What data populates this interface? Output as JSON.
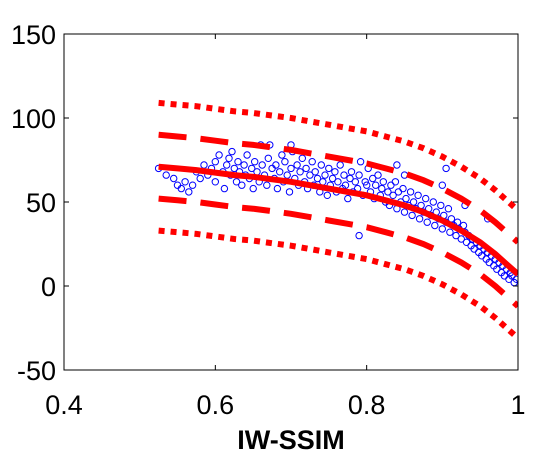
{
  "chart_data": {
    "type": "scatter",
    "title": "",
    "xlabel": "IW-SSIM",
    "ylabel": "",
    "xlim": [
      0.4,
      1.0
    ],
    "ylim": [
      -50,
      150
    ],
    "x_ticks": [
      0.4,
      0.6,
      0.8,
      1.0
    ],
    "x_tick_labels": [
      "0.4",
      "0.6",
      "0.8",
      "1"
    ],
    "y_ticks": [
      -50,
      0,
      50,
      100,
      150
    ],
    "y_tick_labels": [
      "-50",
      "0",
      "50",
      "100",
      "150"
    ],
    "grid": false,
    "legend": "none",
    "colors": {
      "points": "#0000ff",
      "fit": "#ff0000"
    },
    "series": [
      {
        "kind": "scatter",
        "marker": "open-circle",
        "points": [
          [
            0.525,
            70
          ],
          [
            0.535,
            66
          ],
          [
            0.545,
            64
          ],
          [
            0.55,
            60
          ],
          [
            0.555,
            58
          ],
          [
            0.56,
            62
          ],
          [
            0.565,
            56
          ],
          [
            0.57,
            60
          ],
          [
            0.575,
            68
          ],
          [
            0.58,
            64
          ],
          [
            0.585,
            72
          ],
          [
            0.59,
            66
          ],
          [
            0.595,
            70
          ],
          [
            0.6,
            74
          ],
          [
            0.6,
            62
          ],
          [
            0.605,
            78
          ],
          [
            0.61,
            68
          ],
          [
            0.612,
            58
          ],
          [
            0.615,
            72
          ],
          [
            0.618,
            76
          ],
          [
            0.62,
            66
          ],
          [
            0.622,
            80
          ],
          [
            0.625,
            70
          ],
          [
            0.628,
            62
          ],
          [
            0.63,
            74
          ],
          [
            0.632,
            68
          ],
          [
            0.635,
            60
          ],
          [
            0.638,
            72
          ],
          [
            0.64,
            66
          ],
          [
            0.642,
            78
          ],
          [
            0.645,
            64
          ],
          [
            0.648,
            70
          ],
          [
            0.65,
            58
          ],
          [
            0.652,
            74
          ],
          [
            0.655,
            68
          ],
          [
            0.658,
            62
          ],
          [
            0.66,
            84
          ],
          [
            0.662,
            72
          ],
          [
            0.665,
            66
          ],
          [
            0.668,
            60
          ],
          [
            0.67,
            76
          ],
          [
            0.672,
            84
          ],
          [
            0.675,
            70
          ],
          [
            0.678,
            64
          ],
          [
            0.68,
            72
          ],
          [
            0.682,
            58
          ],
          [
            0.685,
            68
          ],
          [
            0.688,
            78
          ],
          [
            0.69,
            62
          ],
          [
            0.692,
            74
          ],
          [
            0.695,
            66
          ],
          [
            0.698,
            56
          ],
          [
            0.7,
            70
          ],
          [
            0.702,
            80
          ],
          [
            0.705,
            64
          ],
          [
            0.708,
            72
          ],
          [
            0.71,
            60
          ],
          [
            0.712,
            68
          ],
          [
            0.715,
            76
          ],
          [
            0.718,
            62
          ],
          [
            0.72,
            70
          ],
          [
            0.722,
            58
          ],
          [
            0.725,
            66
          ],
          [
            0.728,
            74
          ],
          [
            0.73,
            60
          ],
          [
            0.732,
            68
          ],
          [
            0.735,
            64
          ],
          [
            0.738,
            56
          ],
          [
            0.74,
            72
          ],
          [
            0.742,
            62
          ],
          [
            0.745,
            66
          ],
          [
            0.748,
            54
          ],
          [
            0.75,
            70
          ],
          [
            0.752,
            60
          ],
          [
            0.755,
            64
          ],
          [
            0.758,
            68
          ],
          [
            0.76,
            56
          ],
          [
            0.762,
            62
          ],
          [
            0.765,
            72
          ],
          [
            0.768,
            58
          ],
          [
            0.77,
            66
          ],
          [
            0.772,
            60
          ],
          [
            0.775,
            52
          ],
          [
            0.778,
            64
          ],
          [
            0.78,
            68
          ],
          [
            0.782,
            56
          ],
          [
            0.785,
            62
          ],
          [
            0.788,
            58
          ],
          [
            0.79,
            66
          ],
          [
            0.79,
            30
          ],
          [
            0.792,
            74
          ],
          [
            0.795,
            54
          ],
          [
            0.798,
            62
          ],
          [
            0.8,
            60
          ],
          [
            0.802,
            70
          ],
          [
            0.805,
            56
          ],
          [
            0.808,
            64
          ],
          [
            0.81,
            52
          ],
          [
            0.812,
            60
          ],
          [
            0.815,
            66
          ],
          [
            0.818,
            54
          ],
          [
            0.82,
            58
          ],
          [
            0.822,
            62
          ],
          [
            0.825,
            50
          ],
          [
            0.828,
            56
          ],
          [
            0.83,
            48
          ],
          [
            0.832,
            60
          ],
          [
            0.835,
            54
          ],
          [
            0.838,
            62
          ],
          [
            0.84,
            46
          ],
          [
            0.842,
            56
          ],
          [
            0.845,
            50
          ],
          [
            0.848,
            58
          ],
          [
            0.85,
            44
          ],
          [
            0.852,
            52
          ],
          [
            0.855,
            48
          ],
          [
            0.858,
            56
          ],
          [
            0.86,
            42
          ],
          [
            0.862,
            50
          ],
          [
            0.865,
            46
          ],
          [
            0.868,
            54
          ],
          [
            0.87,
            40
          ],
          [
            0.872,
            48
          ],
          [
            0.875,
            44
          ],
          [
            0.878,
            52
          ],
          [
            0.88,
            38
          ],
          [
            0.882,
            46
          ],
          [
            0.885,
            42
          ],
          [
            0.888,
            50
          ],
          [
            0.89,
            36
          ],
          [
            0.892,
            44
          ],
          [
            0.895,
            40
          ],
          [
            0.898,
            48
          ],
          [
            0.9,
            34
          ],
          [
            0.902,
            42
          ],
          [
            0.905,
            38
          ],
          [
            0.908,
            46
          ],
          [
            0.91,
            32
          ],
          [
            0.912,
            40
          ],
          [
            0.915,
            36
          ],
          [
            0.918,
            30
          ],
          [
            0.92,
            38
          ],
          [
            0.922,
            34
          ],
          [
            0.925,
            28
          ],
          [
            0.928,
            36
          ],
          [
            0.93,
            32
          ],
          [
            0.932,
            26
          ],
          [
            0.935,
            30
          ],
          [
            0.938,
            24
          ],
          [
            0.94,
            28
          ],
          [
            0.942,
            22
          ],
          [
            0.945,
            26
          ],
          [
            0.948,
            20
          ],
          [
            0.95,
            24
          ],
          [
            0.952,
            18
          ],
          [
            0.955,
            22
          ],
          [
            0.958,
            16
          ],
          [
            0.96,
            20
          ],
          [
            0.962,
            14
          ],
          [
            0.965,
            18
          ],
          [
            0.968,
            12
          ],
          [
            0.97,
            16
          ],
          [
            0.972,
            10
          ],
          [
            0.975,
            14
          ],
          [
            0.978,
            8
          ],
          [
            0.98,
            12
          ],
          [
            0.982,
            6
          ],
          [
            0.985,
            10
          ],
          [
            0.988,
            4
          ],
          [
            0.99,
            8
          ],
          [
            0.992,
            6
          ],
          [
            0.995,
            2
          ],
          [
            0.998,
            4
          ],
          [
            0.905,
            70
          ],
          [
            0.96,
            40
          ],
          [
            0.84,
            72
          ],
          [
            0.7,
            84
          ],
          [
            0.85,
            66
          ],
          [
            0.93,
            48
          ],
          [
            0.9,
            60
          ]
        ]
      },
      {
        "kind": "fit",
        "style": "solid",
        "x": [
          0.525,
          0.55,
          0.575,
          0.6,
          0.625,
          0.65,
          0.675,
          0.7,
          0.725,
          0.75,
          0.775,
          0.8,
          0.825,
          0.85,
          0.875,
          0.9,
          0.925,
          0.95,
          0.97,
          0.985,
          1.0
        ],
        "y": [
          71,
          70,
          69,
          67.5,
          66,
          65,
          63.5,
          62,
          60,
          58,
          56,
          54,
          51,
          48,
          44,
          39,
          33,
          26,
          19,
          13,
          7
        ]
      },
      {
        "kind": "fit",
        "style": "dashed",
        "x": [
          0.525,
          0.55,
          0.575,
          0.6,
          0.625,
          0.65,
          0.675,
          0.7,
          0.725,
          0.75,
          0.775,
          0.8,
          0.825,
          0.85,
          0.875,
          0.9,
          0.925,
          0.95,
          0.97,
          0.985,
          1.0
        ],
        "y": [
          90,
          89,
          88,
          86.5,
          85,
          84,
          82.5,
          81,
          79,
          77,
          75,
          73,
          70,
          67,
          63,
          58,
          52,
          45,
          38,
          32,
          26
        ]
      },
      {
        "kind": "fit",
        "style": "dashed",
        "x": [
          0.525,
          0.55,
          0.575,
          0.6,
          0.625,
          0.65,
          0.675,
          0.7,
          0.725,
          0.75,
          0.775,
          0.8,
          0.825,
          0.85,
          0.875,
          0.9,
          0.925,
          0.95,
          0.97,
          0.985,
          1.0
        ],
        "y": [
          52,
          51,
          50,
          48.5,
          47,
          46,
          44.5,
          43,
          41,
          39,
          37,
          35,
          32,
          29,
          25,
          20,
          14,
          7,
          0,
          -6,
          -12
        ]
      },
      {
        "kind": "fit",
        "style": "dotted",
        "x": [
          0.525,
          0.55,
          0.575,
          0.6,
          0.625,
          0.65,
          0.675,
          0.7,
          0.725,
          0.75,
          0.775,
          0.8,
          0.825,
          0.85,
          0.875,
          0.9,
          0.925,
          0.95,
          0.97,
          0.985,
          1.0
        ],
        "y": [
          109,
          108,
          107,
          105.5,
          104,
          103,
          101.5,
          100,
          98,
          96,
          94,
          92,
          89,
          86,
          82,
          77,
          71,
          64,
          57,
          51,
          45
        ]
      },
      {
        "kind": "fit",
        "style": "dotted",
        "x": [
          0.525,
          0.55,
          0.575,
          0.6,
          0.625,
          0.65,
          0.675,
          0.7,
          0.725,
          0.75,
          0.775,
          0.8,
          0.825,
          0.85,
          0.875,
          0.9,
          0.925,
          0.95,
          0.97,
          0.985,
          1.0
        ],
        "y": [
          33,
          32,
          31,
          29.5,
          28,
          27,
          25.5,
          24,
          22,
          20,
          18,
          16,
          13,
          10,
          6,
          1,
          -5,
          -12,
          -19,
          -25,
          -31
        ]
      }
    ]
  }
}
